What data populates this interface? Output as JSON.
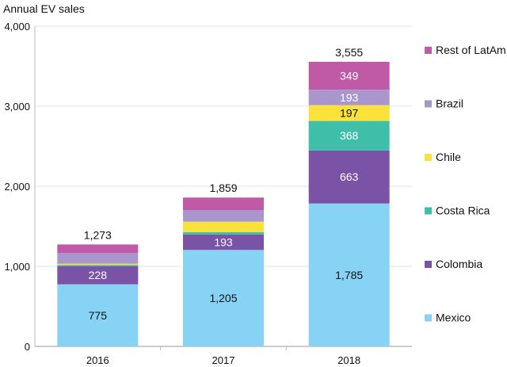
{
  "chart_data": {
    "type": "bar",
    "stacked": true,
    "title": "",
    "ylabel": "Annual EV sales",
    "xlabel": "",
    "ylim": [
      0,
      4000
    ],
    "yticks": [
      0,
      1000,
      2000,
      3000,
      4000
    ],
    "ytick_labels": [
      "0",
      "1,000",
      "2,000",
      "3,000",
      "4,000"
    ],
    "grid": true,
    "legend_position": "right",
    "categories": [
      "2016",
      "2017",
      "2018"
    ],
    "series": [
      {
        "name": "Mexico",
        "color": "#87d3f5",
        "label_color": "#111111",
        "values": [
          775,
          1205,
          1785
        ],
        "labels": [
          "775",
          "1,205",
          "1,785"
        ]
      },
      {
        "name": "Colombia",
        "color": "#7a52a6",
        "label_color": "#ffffff",
        "values": [
          228,
          193,
          663
        ],
        "labels": [
          "228",
          "193",
          "663"
        ]
      },
      {
        "name": "Costa Rica",
        "color": "#3fbfa9",
        "label_color": "#ffffff",
        "values": [
          15,
          30,
          368
        ],
        "labels": [
          "",
          "",
          "368"
        ]
      },
      {
        "name": "Chile",
        "color": "#fbe23a",
        "label_color": "#111111",
        "values": [
          15,
          130,
          197
        ],
        "labels": [
          "",
          "",
          "197"
        ]
      },
      {
        "name": "Brazil",
        "color": "#a996cc",
        "label_color": "#ffffff",
        "values": [
          135,
          145,
          193
        ],
        "labels": [
          "",
          "",
          "193"
        ]
      },
      {
        "name": "Rest of LatAm",
        "color": "#c05aa7",
        "label_color": "#ffffff",
        "values": [
          105,
          156,
          349
        ],
        "labels": [
          "",
          "",
          "349"
        ]
      }
    ],
    "totals": [
      "1,273",
      "1,859",
      "3,555"
    ]
  }
}
